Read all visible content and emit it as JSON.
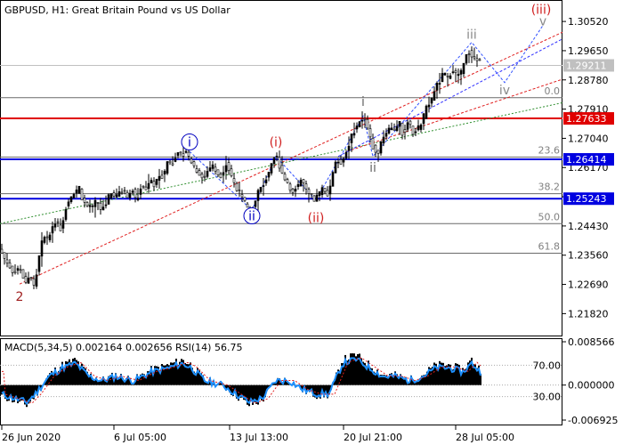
{
  "header": {
    "title": "GBPUSD, H1:  Great Britain Pound vs US Dollar"
  },
  "chart_data": [
    {
      "type": "candlestick",
      "title": "GBPUSD, H1:  Great Britain Pound vs US Dollar",
      "x_labels": [
        "26 Jun 2020",
        "6 Jul 05:00",
        "13 Jul 13:00",
        "20 Jul 21:00",
        "28 Jul 05:00"
      ],
      "ylim": [
        1.213,
        1.31
      ],
      "y_ticks": [
        "1.30520",
        "1.29650",
        "1.28780",
        "1.27910",
        "1.27040",
        "1.26170",
        "1.25300",
        "1.24430",
        "1.23560",
        "1.22690",
        "1.21820"
      ],
      "price_path": [
        [
          0,
          1.238
        ],
        [
          6,
          1.235
        ],
        [
          12,
          1.232
        ],
        [
          18,
          1.23
        ],
        [
          22,
          1.232
        ],
        [
          26,
          1.23
        ],
        [
          30,
          1.2275
        ],
        [
          35,
          1.2295
        ],
        [
          40,
          1.2265
        ],
        [
          45,
          1.234
        ],
        [
          50,
          1.242
        ],
        [
          55,
          1.24
        ],
        [
          60,
          1.244
        ],
        [
          65,
          1.246
        ],
        [
          70,
          1.243
        ],
        [
          75,
          1.2495
        ],
        [
          80,
          1.253
        ],
        [
          85,
          1.2535
        ],
        [
          90,
          1.256
        ],
        [
          95,
          1.251
        ],
        [
          100,
          1.25
        ],
        [
          105,
          1.2495
        ],
        [
          110,
          1.252
        ],
        [
          115,
          1.249
        ],
        [
          120,
          1.251
        ],
        [
          125,
          1.254
        ],
        [
          130,
          1.253
        ],
        [
          135,
          1.2545
        ],
        [
          140,
          1.255
        ],
        [
          145,
          1.253
        ],
        [
          150,
          1.255
        ],
        [
          155,
          1.252
        ],
        [
          160,
          1.256
        ],
        [
          165,
          1.2555
        ],
        [
          170,
          1.258
        ],
        [
          175,
          1.256
        ],
        [
          180,
          1.26
        ],
        [
          185,
          1.259
        ],
        [
          190,
          1.264
        ],
        [
          195,
          1.263
        ],
        [
          200,
          1.266
        ],
        [
          205,
          1.265
        ],
        [
          210,
          1.267
        ],
        [
          215,
          1.264
        ],
        [
          220,
          1.262
        ],
        [
          225,
          1.26
        ],
        [
          230,
          1.258
        ],
        [
          235,
          1.261
        ],
        [
          240,
          1.2625
        ],
        [
          245,
          1.26
        ],
        [
          250,
          1.259
        ],
        [
          255,
          1.263
        ],
        [
          260,
          1.26
        ],
        [
          265,
          1.257
        ],
        [
          270,
          1.254
        ],
        [
          275,
          1.252
        ],
        [
          280,
          1.25
        ],
        [
          284,
          1.249
        ],
        [
          288,
          1.251
        ],
        [
          292,
          1.255
        ],
        [
          296,
          1.256
        ],
        [
          300,
          1.258
        ],
        [
          304,
          1.26
        ],
        [
          308,
          1.264
        ],
        [
          312,
          1.265
        ],
        [
          316,
          1.262
        ],
        [
          320,
          1.259
        ],
        [
          325,
          1.257
        ],
        [
          330,
          1.254
        ],
        [
          335,
          1.256
        ],
        [
          340,
          1.258
        ],
        [
          345,
          1.255
        ],
        [
          350,
          1.253
        ],
        [
          355,
          1.252
        ],
        [
          360,
          1.254
        ],
        [
          365,
          1.256
        ],
        [
          370,
          1.253
        ],
        [
          375,
          1.26
        ],
        [
          380,
          1.264
        ],
        [
          385,
          1.263
        ],
        [
          390,
          1.266
        ],
        [
          395,
          1.27
        ],
        [
          400,
          1.273
        ],
        [
          405,
          1.275
        ],
        [
          410,
          1.277
        ],
        [
          415,
          1.273
        ],
        [
          420,
          1.268
        ],
        [
          425,
          1.265
        ],
        [
          430,
          1.27
        ],
        [
          435,
          1.272
        ],
        [
          440,
          1.274
        ],
        [
          445,
          1.273
        ],
        [
          450,
          1.275
        ],
        [
          455,
          1.271
        ],
        [
          460,
          1.276
        ],
        [
          465,
          1.272
        ],
        [
          470,
          1.273
        ],
        [
          475,
          1.275
        ],
        [
          480,
          1.279
        ],
        [
          485,
          1.281
        ],
        [
          490,
          1.285
        ],
        [
          495,
          1.287
        ],
        [
          500,
          1.29
        ],
        [
          505,
          1.288
        ],
        [
          510,
          1.291
        ],
        [
          515,
          1.289
        ],
        [
          520,
          1.29
        ],
        [
          525,
          1.295
        ],
        [
          530,
          1.296
        ],
        [
          535,
          1.294
        ],
        [
          540,
          1.2935
        ]
      ],
      "candle_step": 3,
      "overlays": {
        "current_price": "1.29211",
        "levels": [
          {
            "price": 1.27633,
            "label": "1.27633",
            "color": "#e00000"
          },
          {
            "price": 1.26414,
            "label": "1.26414",
            "color": "#0000e0"
          },
          {
            "price": 1.25243,
            "label": "1.25243",
            "color": "#0000e0"
          }
        ],
        "fibonacci": [
          {
            "label": "0.0",
            "price": 1.2825
          },
          {
            "label": "23.6",
            "price": 1.2648
          },
          {
            "label": "38.2",
            "price": 1.2539
          },
          {
            "label": "50.0",
            "price": 1.245
          },
          {
            "label": "61.8",
            "price": 1.2362
          }
        ],
        "wave_labels": [
          {
            "text": "2",
            "color": "#a02020",
            "x": 22,
            "price": 1.222
          },
          {
            "text": "i",
            "color": "#0000c0",
            "x": 213,
            "price": 1.268,
            "circled": true
          },
          {
            "text": "ii",
            "color": "#0000c0",
            "x": 283,
            "price": 1.246,
            "circled": true
          },
          {
            "text": "(i)",
            "color": "#d02020",
            "x": 310,
            "price": 1.268
          },
          {
            "text": "(ii)",
            "color": "#d02020",
            "x": 355,
            "price": 1.2455
          },
          {
            "text": "i",
            "color": "#666666",
            "x": 408,
            "price": 1.28
          },
          {
            "text": "ii",
            "color": "#666666",
            "x": 419,
            "price": 1.2605
          },
          {
            "text": "iii",
            "color": "#888888",
            "x": 530,
            "price": 1.3
          },
          {
            "text": "iv",
            "color": "#888888",
            "x": 567,
            "price": 1.2835
          },
          {
            "text": "v",
            "color": "#888888",
            "x": 610,
            "price": 1.304
          },
          {
            "text": "(iii)",
            "color": "#d02020",
            "x": 608,
            "price": 1.3075
          }
        ]
      }
    },
    {
      "type": "bar",
      "title": "MACD(5,34,5) 0.002164 0.002656 RSI(14) 56.75",
      "y_ticks": [
        "0.008566",
        "0.000000",
        "-0.006925"
      ],
      "rsi_ticks": [
        "70.00",
        "30.00"
      ],
      "macd_path": [
        [
          0,
          -0.002
        ],
        [
          15,
          -0.003
        ],
        [
          30,
          -0.004
        ],
        [
          40,
          -0.002
        ],
        [
          55,
          0.002
        ],
        [
          70,
          0.004
        ],
        [
          85,
          0.005
        ],
        [
          100,
          0.002
        ],
        [
          115,
          0.001
        ],
        [
          130,
          0.002
        ],
        [
          150,
          0.001
        ],
        [
          170,
          0.003
        ],
        [
          190,
          0.004
        ],
        [
          205,
          0.005
        ],
        [
          215,
          0.004
        ],
        [
          230,
          0.001
        ],
        [
          250,
          0.0
        ],
        [
          265,
          -0.002
        ],
        [
          280,
          -0.004
        ],
        [
          295,
          -0.003
        ],
        [
          310,
          0.001
        ],
        [
          325,
          0.001
        ],
        [
          340,
          -0.001
        ],
        [
          355,
          -0.002
        ],
        [
          370,
          -0.002
        ],
        [
          385,
          0.005
        ],
        [
          400,
          0.006
        ],
        [
          415,
          0.004
        ],
        [
          430,
          0.002
        ],
        [
          445,
          0.002
        ],
        [
          460,
          0.001
        ],
        [
          475,
          0.002
        ],
        [
          490,
          0.004
        ],
        [
          505,
          0.004
        ],
        [
          520,
          0.003
        ],
        [
          530,
          0.005
        ],
        [
          540,
          0.003
        ]
      ]
    }
  ]
}
